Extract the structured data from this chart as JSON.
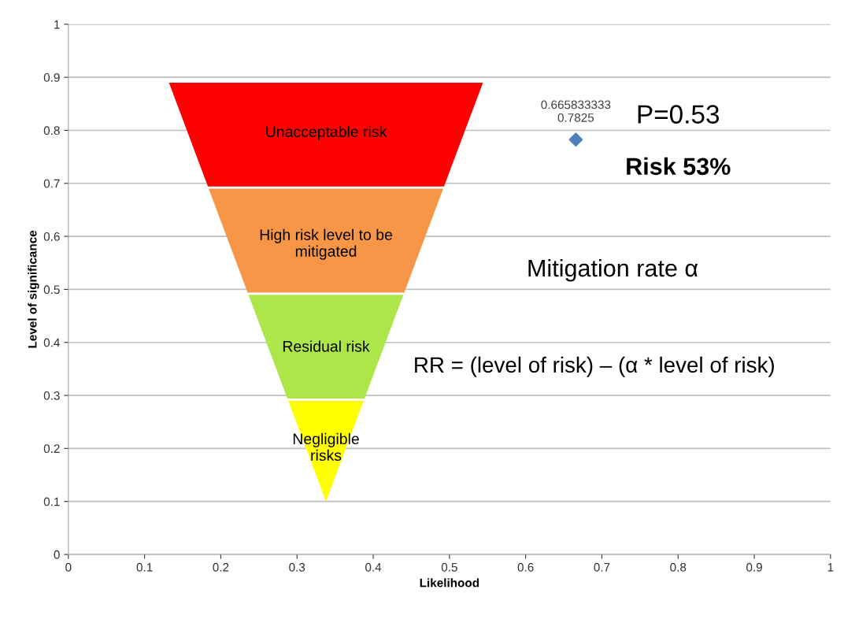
{
  "chart_data": {
    "type": "scatter",
    "xlabel": "Likelihood",
    "ylabel": "Level of significance",
    "x": [
      0.665833333
    ],
    "series": [
      {
        "color": "#4f81bd",
        "values": [
          0.7825
        ],
        "value_labels": [
          "0.665833333\n0.7825"
        ]
      }
    ],
    "marker": "diamond",
    "xlim": [
      0,
      1
    ],
    "ylim": [
      0,
      1
    ],
    "xticks": [
      0,
      0.1,
      0.2,
      0.3,
      0.4,
      0.5,
      0.6,
      0.7,
      0.8,
      0.9,
      1
    ],
    "yticks": [
      0,
      0.1,
      0.2,
      0.3,
      0.4,
      0.5,
      0.6,
      0.7,
      0.8,
      0.9,
      1
    ],
    "grid": "y",
    "annotations": [
      "Unacceptable risk",
      "High risk level to be\nmitigated",
      "Residual risk",
      "Negligible\nrisks",
      "P=0.53",
      "Risk 53%",
      "Mitigation rate α",
      "RR = (level of risk) – (α * level of risk)"
    ]
  }
}
